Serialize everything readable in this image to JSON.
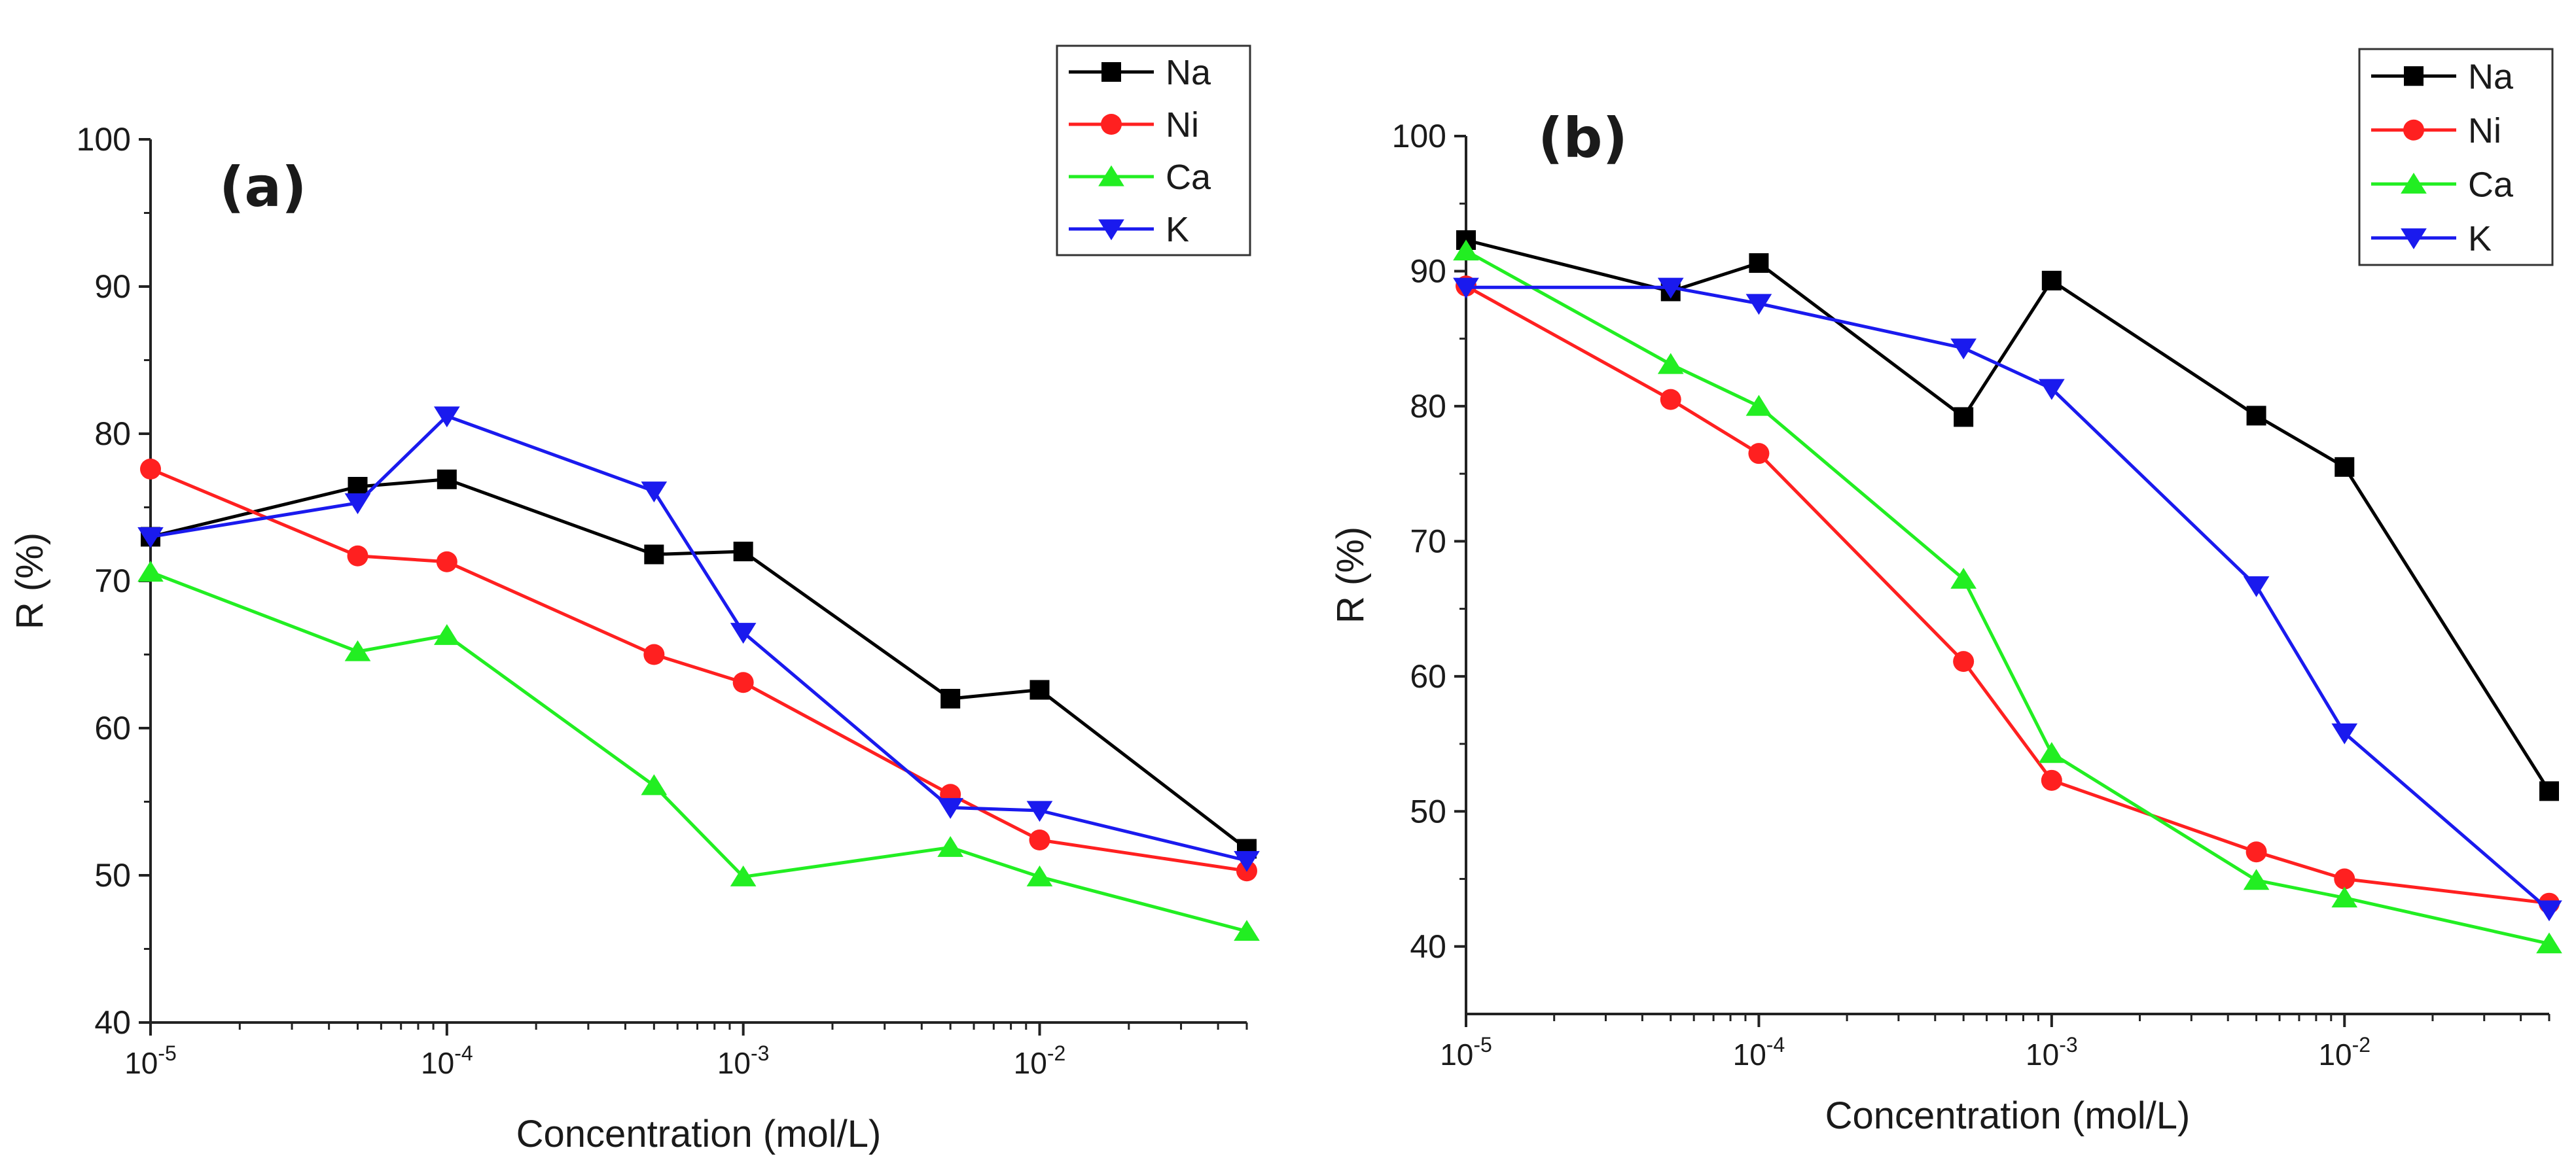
{
  "chart_data": [
    {
      "type": "line",
      "panel_label": "(a)",
      "xlabel": "Concentration (mol/L)",
      "ylabel": "R (%)",
      "xscale": "log",
      "xlim": [
        1e-05,
        0.05
      ],
      "ylim": [
        40,
        100
      ],
      "y_ticks": [
        "40",
        "50",
        "60",
        "70",
        "80",
        "90",
        "100"
      ],
      "x_ticks": [
        {
          "base": "10",
          "exp": "-5",
          "value": 1e-05
        },
        {
          "base": "10",
          "exp": "-4",
          "value": 0.0001
        },
        {
          "base": "10",
          "exp": "-3",
          "value": 0.001
        },
        {
          "base": "10",
          "exp": "-2",
          "value": 0.01
        }
      ],
      "legend_position": "top-right",
      "x": [
        1e-05,
        5e-05,
        0.0001,
        0.0005,
        0.001,
        0.005,
        0.01,
        0.05
      ],
      "series": [
        {
          "name": "Na",
          "color": "#000000",
          "marker": "square",
          "values": [
            73.0,
            76.4,
            76.9,
            71.8,
            72.0,
            62.0,
            62.6,
            51.8
          ]
        },
        {
          "name": "Ni",
          "color": "#ff2020",
          "marker": "circle",
          "values": [
            77.6,
            71.7,
            71.3,
            65.0,
            63.1,
            55.5,
            52.4,
            50.3
          ]
        },
        {
          "name": "Ca",
          "color": "#22ee22",
          "marker": "triangle-up",
          "values": [
            70.6,
            65.2,
            66.3,
            56.1,
            49.9,
            51.9,
            49.9,
            46.2
          ]
        },
        {
          "name": "K",
          "color": "#1a1aee",
          "marker": "triangle-down",
          "values": [
            73.0,
            75.3,
            81.2,
            76.1,
            66.5,
            54.6,
            54.4,
            51.0
          ]
        }
      ]
    },
    {
      "type": "line",
      "panel_label": "(b)",
      "xlabel": "Concentration (mol/L)",
      "ylabel": "R (%)",
      "xscale": "log",
      "xlim": [
        1e-05,
        0.05
      ],
      "ylim": [
        35,
        100
      ],
      "y_ticks": [
        "40",
        "50",
        "60",
        "70",
        "80",
        "90",
        "100"
      ],
      "x_ticks": [
        {
          "base": "10",
          "exp": "-5",
          "value": 1e-05
        },
        {
          "base": "10",
          "exp": "-4",
          "value": 0.0001
        },
        {
          "base": "10",
          "exp": "-3",
          "value": 0.001
        },
        {
          "base": "10",
          "exp": "-2",
          "value": 0.01
        }
      ],
      "legend_position": "top-right",
      "x": [
        1e-05,
        5e-05,
        0.0001,
        0.0005,
        0.001,
        0.005,
        0.01,
        0.05
      ],
      "series": [
        {
          "name": "Na",
          "color": "#000000",
          "marker": "square",
          "values": [
            92.3,
            88.5,
            90.6,
            79.2,
            89.3,
            79.3,
            75.5,
            51.5
          ]
        },
        {
          "name": "Ni",
          "color": "#ff2020",
          "marker": "circle",
          "values": [
            88.9,
            80.5,
            76.5,
            61.1,
            52.3,
            47.0,
            45.0,
            43.2
          ]
        },
        {
          "name": "Ca",
          "color": "#22ee22",
          "marker": "triangle-up",
          "values": [
            91.5,
            83.1,
            80.0,
            67.2,
            54.3,
            44.9,
            43.6,
            40.2
          ]
        },
        {
          "name": "K",
          "color": "#1a1aee",
          "marker": "triangle-down",
          "values": [
            88.8,
            88.8,
            87.6,
            84.3,
            81.3,
            66.7,
            55.8,
            42.7
          ]
        }
      ]
    }
  ]
}
